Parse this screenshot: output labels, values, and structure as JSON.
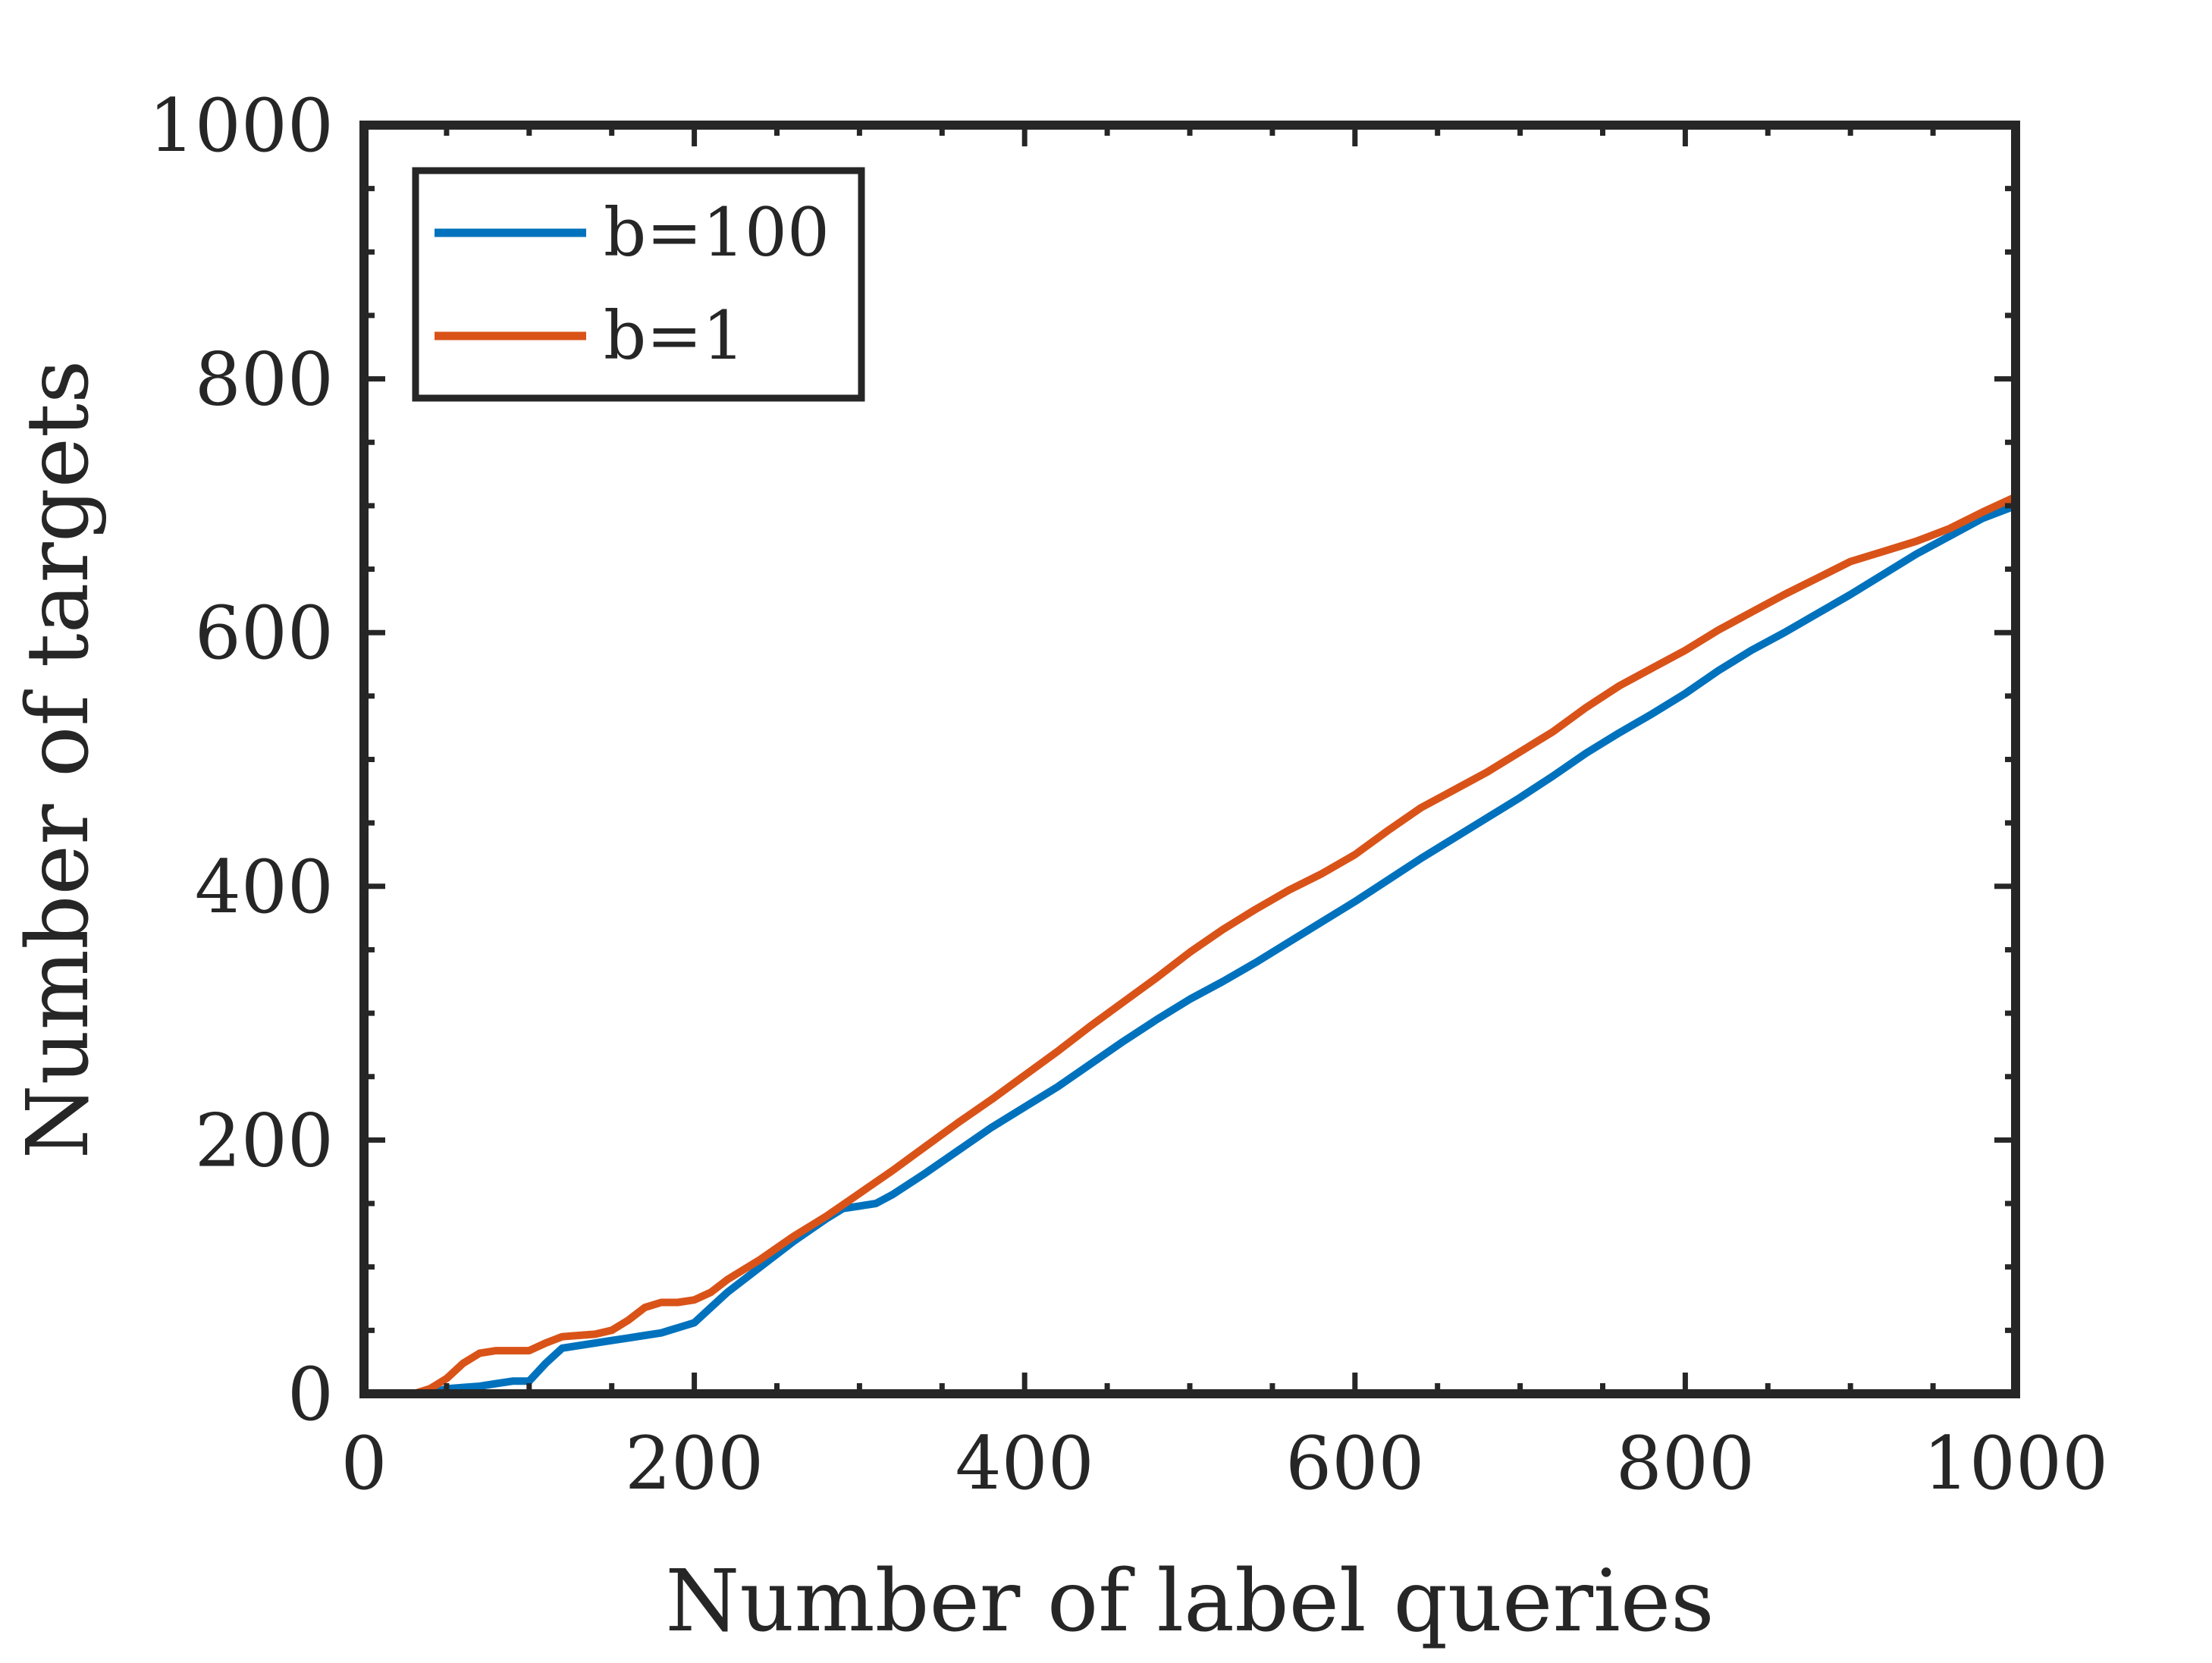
{
  "chart_data": {
    "type": "line",
    "xlabel": "Number of label queries",
    "ylabel": "Number of targets",
    "xlim": [
      0,
      1000
    ],
    "ylim": [
      0,
      1000
    ],
    "xticks": [
      0,
      200,
      400,
      600,
      800,
      1000
    ],
    "yticks": [
      0,
      200,
      400,
      600,
      800,
      1000
    ],
    "xtick_labels": [
      "0",
      "200",
      "400",
      "600",
      "800",
      "1000"
    ],
    "ytick_labels": [
      "0",
      "200",
      "400",
      "600",
      "800",
      "1000"
    ],
    "grid": false,
    "legend_position": "top-left",
    "series": [
      {
        "name": "b=100",
        "color": "#0072BD",
        "x": [
          0,
          20,
          40,
          50,
          60,
          70,
          80,
          90,
          100,
          110,
          120,
          130,
          140,
          150,
          160,
          170,
          180,
          190,
          200,
          210,
          220,
          240,
          260,
          280,
          290,
          300,
          310,
          320,
          340,
          360,
          380,
          400,
          420,
          440,
          460,
          480,
          500,
          520,
          540,
          560,
          580,
          600,
          620,
          640,
          660,
          680,
          700,
          720,
          740,
          760,
          780,
          800,
          820,
          840,
          860,
          880,
          900,
          920,
          940,
          960,
          980,
          1000
        ],
        "y": [
          0,
          0,
          0,
          4,
          5,
          6,
          8,
          10,
          10,
          24,
          36,
          38,
          40,
          42,
          44,
          46,
          48,
          52,
          56,
          68,
          80,
          100,
          120,
          138,
          146,
          148,
          150,
          157,
          174,
          192,
          210,
          226,
          242,
          260,
          278,
          295,
          311,
          325,
          340,
          356,
          372,
          388,
          405,
          422,
          438,
          454,
          470,
          487,
          505,
          521,
          536,
          552,
          570,
          586,
          600,
          615,
          630,
          646,
          662,
          676,
          690,
          700
        ]
      },
      {
        "name": "b=1",
        "color": "#D95319",
        "x": [
          0,
          30,
          40,
          50,
          60,
          70,
          80,
          90,
          100,
          110,
          120,
          130,
          140,
          150,
          160,
          170,
          180,
          190,
          200,
          210,
          220,
          240,
          260,
          280,
          300,
          320,
          340,
          360,
          380,
          400,
          420,
          440,
          460,
          480,
          500,
          520,
          540,
          560,
          580,
          600,
          620,
          640,
          660,
          680,
          700,
          720,
          740,
          760,
          780,
          800,
          820,
          840,
          860,
          880,
          900,
          920,
          940,
          960,
          980,
          1000
        ],
        "y": [
          0,
          0,
          4,
          12,
          24,
          32,
          34,
          34,
          34,
          40,
          45,
          46,
          47,
          50,
          58,
          68,
          72,
          72,
          74,
          80,
          90,
          106,
          124,
          140,
          158,
          176,
          195,
          214,
          232,
          251,
          270,
          290,
          309,
          328,
          348,
          366,
          382,
          397,
          410,
          425,
          444,
          462,
          476,
          490,
          506,
          522,
          541,
          558,
          572,
          586,
          602,
          616,
          630,
          643,
          656,
          664,
          672,
          682,
          695,
          707
        ]
      }
    ]
  }
}
